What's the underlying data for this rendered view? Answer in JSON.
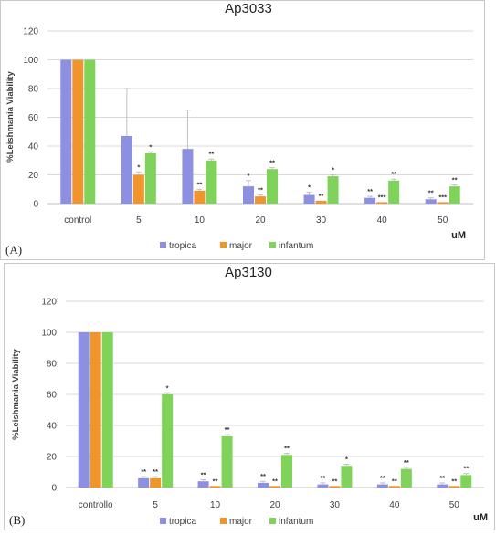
{
  "colors": {
    "tropica": "#8d8fe0",
    "major": "#f0952c",
    "infantum": "#7fd35b"
  },
  "chart_data": [
    {
      "type": "bar",
      "title": "Ap3033",
      "panel_label": "(A)",
      "xlabel": "uM",
      "ylabel": "%Leishmania Viability",
      "ylim": [
        0,
        120
      ],
      "yticks": [
        "0",
        "20",
        "40",
        "60",
        "80",
        "100",
        "120"
      ],
      "categories": [
        "control",
        "5",
        "10",
        "20",
        "30",
        "40",
        "50"
      ],
      "grid": true,
      "legend_position": "bottom",
      "series": [
        {
          "name": "tropica",
          "values": [
            100,
            47,
            38,
            12,
            6,
            4,
            3
          ],
          "errors": [
            0,
            33,
            27,
            4,
            2,
            1,
            1
          ],
          "significance": [
            "",
            "",
            "",
            "*",
            "*",
            "**",
            "**"
          ]
        },
        {
          "name": "major",
          "values": [
            100,
            20,
            9,
            5,
            2,
            1,
            1
          ],
          "errors": [
            0,
            2,
            1,
            1,
            0,
            0,
            0
          ],
          "significance": [
            "",
            "*",
            "**",
            "**",
            "**",
            "***",
            "***"
          ]
        },
        {
          "name": "infantum",
          "values": [
            100,
            35,
            30,
            24,
            19,
            16,
            12
          ],
          "errors": [
            0,
            1,
            1,
            1,
            1,
            1,
            1
          ],
          "significance": [
            "",
            "*",
            "**",
            "**",
            "*",
            "**",
            "**"
          ]
        }
      ]
    },
    {
      "type": "bar",
      "title": "Ap3130",
      "panel_label": "(B)",
      "xlabel": "uM",
      "ylabel": "%Leishmania Viability",
      "ylim": [
        0,
        120
      ],
      "yticks": [
        "0",
        "20",
        "40",
        "60",
        "80",
        "100",
        "120"
      ],
      "categories": [
        "controllo",
        "5",
        "10",
        "20",
        "30",
        "40",
        "50"
      ],
      "grid": true,
      "legend_position": "bottom",
      "series": [
        {
          "name": "tropica",
          "values": [
            100,
            6,
            4,
            3,
            2,
            2,
            2
          ],
          "errors": [
            0,
            1,
            1,
            1,
            1,
            1,
            1
          ],
          "significance": [
            "",
            "**",
            "**",
            "**",
            "**",
            "**",
            "**"
          ]
        },
        {
          "name": "major",
          "values": [
            100,
            6,
            1,
            1,
            1,
            1,
            1
          ],
          "errors": [
            0,
            1,
            0,
            0,
            0,
            0,
            0
          ],
          "significance": [
            "",
            "**",
            "**",
            "**",
            "**",
            "**",
            "**"
          ]
        },
        {
          "name": "infantum",
          "values": [
            100,
            60,
            33,
            21,
            14,
            12,
            8
          ],
          "errors": [
            0,
            1,
            1,
            1,
            1,
            1,
            1
          ],
          "significance": [
            "",
            "*",
            "**",
            "**",
            "*",
            "**",
            "**"
          ]
        }
      ]
    }
  ]
}
